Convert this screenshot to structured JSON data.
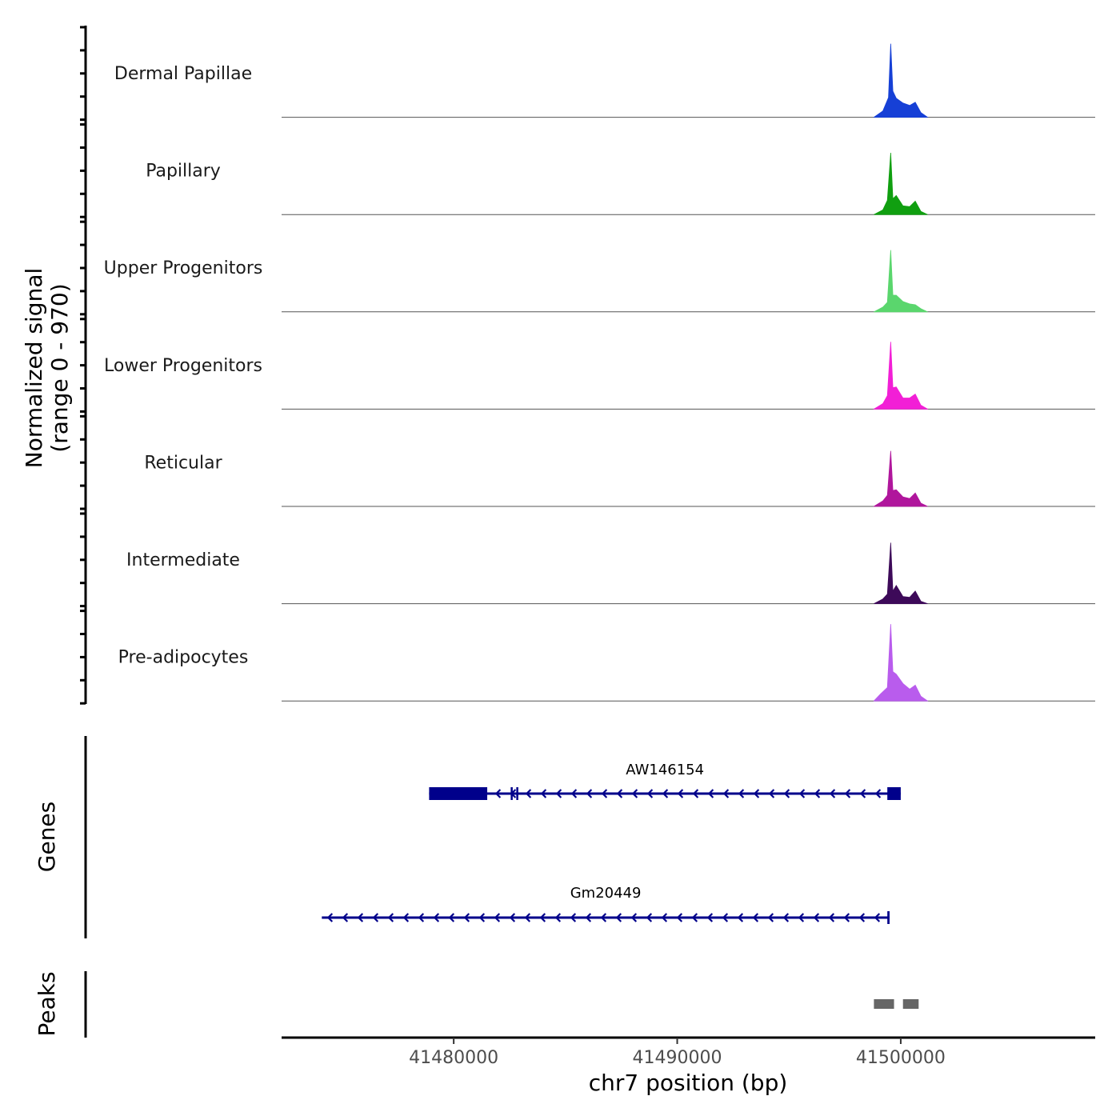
{
  "chart_data": [
    {
      "type": "area",
      "panel": "coverage",
      "ylabel": "Normalized signal",
      "ylabel_range": "(range 0 - 970)",
      "ylim": [
        0,
        970
      ],
      "xlim": [
        41472300,
        41508700
      ],
      "tracks": [
        {
          "name": "Dermal Papillae",
          "color": "#1640d6",
          "peaks": [
            [
              41498800,
              0
            ],
            [
              41499200,
              80
            ],
            [
              41499450,
              250
            ],
            [
              41499550,
              930
            ],
            [
              41499650,
              330
            ],
            [
              41499800,
              240
            ],
            [
              41500100,
              180
            ],
            [
              41500400,
              150
            ],
            [
              41500650,
              190
            ],
            [
              41500900,
              60
            ],
            [
              41501200,
              0
            ]
          ]
        },
        {
          "name": "Papillary",
          "color": "#109f10",
          "peaks": [
            [
              41498800,
              0
            ],
            [
              41499200,
              60
            ],
            [
              41499400,
              180
            ],
            [
              41499550,
              780
            ],
            [
              41499650,
              200
            ],
            [
              41499800,
              240
            ],
            [
              41500100,
              110
            ],
            [
              41500400,
              100
            ],
            [
              41500650,
              170
            ],
            [
              41500900,
              40
            ],
            [
              41501200,
              0
            ]
          ]
        },
        {
          "name": "Upper Progenitors",
          "color": "#5ad66d",
          "peaks": [
            [
              41498800,
              0
            ],
            [
              41499200,
              60
            ],
            [
              41499400,
              120
            ],
            [
              41499550,
              780
            ],
            [
              41499650,
              210
            ],
            [
              41499800,
              210
            ],
            [
              41500100,
              130
            ],
            [
              41500400,
              100
            ],
            [
              41500650,
              90
            ],
            [
              41500900,
              40
            ],
            [
              41501200,
              0
            ]
          ]
        },
        {
          "name": "Lower Progenitors",
          "color": "#f21fd6",
          "peaks": [
            [
              41498800,
              0
            ],
            [
              41499200,
              70
            ],
            [
              41499400,
              170
            ],
            [
              41499550,
              850
            ],
            [
              41499650,
              270
            ],
            [
              41499800,
              280
            ],
            [
              41500100,
              140
            ],
            [
              41500400,
              140
            ],
            [
              41500650,
              190
            ],
            [
              41500900,
              50
            ],
            [
              41501200,
              0
            ]
          ]
        },
        {
          "name": "Reticular",
          "color": "#b0169c",
          "peaks": [
            [
              41498800,
              0
            ],
            [
              41499200,
              70
            ],
            [
              41499400,
              140
            ],
            [
              41499550,
              700
            ],
            [
              41499650,
              200
            ],
            [
              41499800,
              210
            ],
            [
              41500100,
              120
            ],
            [
              41500400,
              100
            ],
            [
              41500650,
              170
            ],
            [
              41500900,
              40
            ],
            [
              41501200,
              0
            ]
          ]
        },
        {
          "name": "Intermediate",
          "color": "#3d0a59",
          "peaks": [
            [
              41498800,
              0
            ],
            [
              41499200,
              60
            ],
            [
              41499400,
              120
            ],
            [
              41499550,
              770
            ],
            [
              41499650,
              160
            ],
            [
              41499800,
              230
            ],
            [
              41500100,
              90
            ],
            [
              41500400,
              80
            ],
            [
              41500650,
              160
            ],
            [
              41500900,
              30
            ],
            [
              41501200,
              0
            ]
          ]
        },
        {
          "name": "Pre-adipocytes",
          "color": "#b95ced",
          "peaks": [
            [
              41498800,
              0
            ],
            [
              41499100,
              90
            ],
            [
              41499400,
              170
            ],
            [
              41499550,
              970
            ],
            [
              41499650,
              370
            ],
            [
              41499800,
              340
            ],
            [
              41500100,
              220
            ],
            [
              41500400,
              150
            ],
            [
              41500650,
              200
            ],
            [
              41500900,
              60
            ],
            [
              41501200,
              0
            ]
          ]
        }
      ]
    },
    {
      "type": "gene-track",
      "panel": "genes",
      "ylabel": "Genes",
      "genes": [
        {
          "name": "AW146154",
          "strand": "-",
          "start": 41478900,
          "end": 41500000,
          "exons": [
            [
              41478900,
              41481500
            ],
            [
              41482550,
              41482600
            ],
            [
              41482800,
              41482850
            ],
            [
              41499400,
              41500000
            ]
          ],
          "color": "#00008b"
        },
        {
          "name": "Gm20449",
          "strand": "-",
          "start": 41474100,
          "end": 41499500,
          "exons": [
            [
              41499400,
              41499500
            ]
          ],
          "color": "#00008b"
        }
      ]
    },
    {
      "type": "range-track",
      "panel": "peaks",
      "ylabel": "Peaks",
      "color": "#666666",
      "regions": [
        [
          41498800,
          41499700
        ],
        [
          41500100,
          41500800
        ]
      ]
    },
    {
      "type": "axis",
      "panel": "x-axis",
      "xlabel": "chr7 position (bp)",
      "ticks": [
        41480000,
        41490000,
        41500000
      ],
      "tick_labels": [
        "41480000",
        "41490000",
        "41500000"
      ]
    }
  ]
}
